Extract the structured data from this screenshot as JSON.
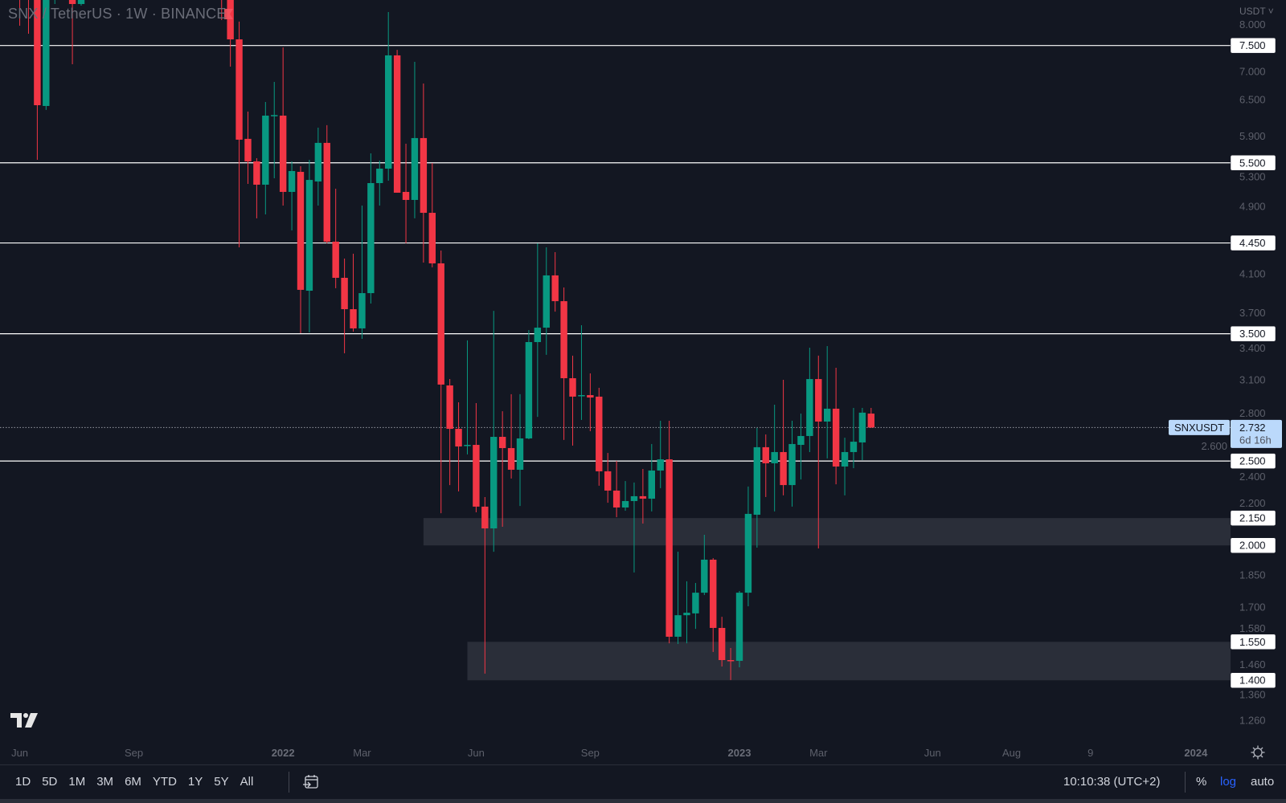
{
  "header": {
    "title": "SNX / TetherUS · 1W · BINANCE",
    "currency": "USDT ˅"
  },
  "colors": {
    "background": "#131722",
    "up": "#089981",
    "down": "#f23645",
    "zone": "#2a2e39",
    "level_line": "#ffffff",
    "axis_text": "#5d606b",
    "accent": "#2962ff",
    "last_price_bg": "#bbd9fb"
  },
  "chart_data": {
    "type": "candlestick",
    "symbol": "SNXUSDT",
    "interval": "1W",
    "y_scale": "log",
    "ylim": [
      1.2,
      8.46
    ],
    "grid": false,
    "candle_format": [
      "date",
      "open",
      "high",
      "low",
      "close",
      "direction_if_partly_offscreen"
    ],
    "candles": [
      [
        "2021-06-07",
        null,
        null,
        7.903,
        null,
        "d"
      ],
      [
        "2021-06-14",
        null,
        null,
        7.737,
        null,
        "d"
      ],
      [
        "2021-06-21",
        null,
        null,
        5.544,
        6.405,
        "d"
      ],
      [
        "2021-06-28",
        6.392,
        null,
        6.325,
        null,
        "u"
      ],
      [
        "2021-07-05",
        null,
        null,
        8.37,
        null,
        "u"
      ],
      [
        "2021-07-19",
        null,
        null,
        7.138,
        8.37,
        "d"
      ],
      [
        "2021-07-26",
        8.37,
        null,
        8.335,
        null,
        "u"
      ],
      [
        "2021-11-15",
        null,
        null,
        8.023,
        null,
        "d"
      ],
      [
        "2021-11-22",
        null,
        null,
        7.093,
        7.623,
        "d"
      ],
      [
        "2021-11-29",
        7.623,
        7.989,
        4.399,
        5.847
      ],
      [
        "2021-12-06",
        5.86,
        6.298,
        5.202,
        5.521
      ],
      [
        "2021-12-13",
        5.521,
        5.568,
        4.749,
        5.191
      ],
      [
        "2021-12-20",
        5.191,
        6.459,
        4.799,
        6.231
      ],
      [
        "2021-12-27",
        6.231,
        6.812,
        5.28,
        6.24
      ],
      [
        "2022-01-03",
        6.231,
        7.462,
        4.912,
        5.093
      ],
      [
        "2022-01-10",
        5.093,
        5.521,
        4.6,
        5.382
      ],
      [
        "2022-01-17",
        5.37,
        5.451,
        3.505,
        3.931
      ],
      [
        "2022-01-24",
        3.922,
        5.544,
        3.512,
        5.257
      ],
      [
        "2022-01-31",
        5.235,
        6.036,
        4.912,
        5.798
      ],
      [
        "2022-02-07",
        5.798,
        6.075,
        4.446,
        4.465
      ],
      [
        "2022-02-14",
        4.465,
        5.136,
        3.948,
        4.058
      ],
      [
        "2022-02-21",
        4.058,
        4.27,
        3.324,
        3.735
      ],
      [
        "2022-02-28",
        3.735,
        4.325,
        3.52,
        3.55
      ],
      [
        "2022-03-07",
        3.55,
        4.912,
        3.453,
        3.897
      ],
      [
        "2022-03-14",
        3.897,
        5.639,
        3.791,
        5.213
      ],
      [
        "2022-03-21",
        5.213,
        5.533,
        4.912,
        5.416
      ],
      [
        "2022-03-28",
        5.416,
        8.195,
        5.246,
        7.307
      ],
      [
        "2022-04-04",
        7.307,
        7.414,
        5.082,
        5.082
      ],
      [
        "2022-04-11",
        5.093,
        5.785,
        4.446,
        4.986
      ],
      [
        "2022-04-18",
        4.986,
        7.184,
        4.749,
        5.872
      ],
      [
        "2022-04-25",
        5.872,
        6.783,
        4.225,
        4.819
      ],
      [
        "2022-05-02",
        4.819,
        5.497,
        4.172,
        4.216
      ],
      [
        "2022-05-09",
        4.216,
        4.362,
        2.178,
        3.06
      ],
      [
        "2022-05-16",
        3.053,
        3.105,
        2.346,
        2.722
      ],
      [
        "2022-05-23",
        2.722,
        2.92,
        2.307,
        2.598
      ],
      [
        "2022-05-30",
        2.604,
        3.439,
        2.544,
        2.609
      ],
      [
        "2022-06-06",
        2.609,
        2.914,
        2.183,
        2.216
      ],
      [
        "2022-06-13",
        2.216,
        2.273,
        1.425,
        2.092
      ],
      [
        "2022-06-20",
        2.092,
        3.719,
        1.967,
        2.665
      ],
      [
        "2022-06-27",
        2.665,
        2.852,
        2.101,
        2.587
      ],
      [
        "2022-07-04",
        2.587,
        2.983,
        2.387,
        2.443
      ],
      [
        "2022-07-11",
        2.443,
        2.983,
        2.22,
        2.654
      ],
      [
        "2022-07-18",
        2.654,
        3.535,
        2.648,
        3.424
      ],
      [
        "2022-07-25",
        3.424,
        4.446,
        2.81,
        3.557
      ],
      [
        "2022-08-01",
        3.557,
        4.399,
        3.31,
        4.084
      ],
      [
        "2022-08-08",
        4.084,
        4.343,
        3.711,
        3.815
      ],
      [
        "2022-08-15",
        3.815,
        3.956,
        2.643,
        3.112
      ],
      [
        "2022-08-22",
        3.112,
        3.303,
        2.604,
        2.964
      ],
      [
        "2022-08-29",
        2.97,
        3.58,
        2.787,
        2.976
      ],
      [
        "2022-09-05",
        2.976,
        3.152,
        2.705,
        2.957
      ],
      [
        "2022-09-12",
        2.964,
        3.034,
        2.342,
        2.433
      ],
      [
        "2022-09-19",
        2.433,
        2.554,
        2.239,
        2.312
      ],
      [
        "2022-09-26",
        2.312,
        2.501,
        2.155,
        2.211
      ],
      [
        "2022-10-03",
        2.211,
        2.371,
        2.192,
        2.249
      ],
      [
        "2022-10-10",
        2.249,
        2.362,
        1.862,
        2.278
      ],
      [
        "2022-10-17",
        2.278,
        2.448,
        2.119,
        2.263
      ],
      [
        "2022-10-24",
        2.263,
        2.615,
        2.188,
        2.438
      ],
      [
        "2022-10-31",
        2.438,
        2.781,
        2.327,
        2.511
      ],
      [
        "2022-11-07",
        2.511,
        2.781,
        1.544,
        1.571
      ],
      [
        "2022-11-14",
        1.571,
        1.967,
        1.541,
        1.663
      ],
      [
        "2022-11-21",
        1.663,
        1.819,
        1.544,
        1.674
      ],
      [
        "2022-11-28",
        1.671,
        1.811,
        1.604,
        1.765
      ],
      [
        "2022-12-05",
        1.765,
        2.057,
        1.754,
        1.926
      ],
      [
        "2022-12-12",
        1.926,
        1.934,
        1.509,
        1.608
      ],
      [
        "2022-12-19",
        1.608,
        1.656,
        1.452,
        1.477
      ],
      [
        "2022-12-26",
        1.477,
        1.525,
        1.401,
        1.474
      ],
      [
        "2023-01-02",
        1.474,
        1.773,
        1.449,
        1.765
      ],
      [
        "2023-01-09",
        1.765,
        2.337,
        1.703,
        2.174
      ],
      [
        "2023-01-16",
        2.169,
        2.728,
        1.988,
        2.593
      ],
      [
        "2023-01-23",
        2.593,
        2.682,
        2.273,
        2.485
      ],
      [
        "2023-01-30",
        2.485,
        2.901,
        2.188,
        2.56
      ],
      [
        "2023-02-06",
        2.56,
        3.099,
        2.283,
        2.346
      ],
      [
        "2023-02-13",
        2.346,
        2.781,
        2.216,
        2.615
      ],
      [
        "2023-02-20",
        2.609,
        2.834,
        2.381,
        2.671
      ],
      [
        "2023-02-27",
        2.671,
        3.373,
        2.56,
        3.105
      ],
      [
        "2023-03-06",
        3.105,
        3.303,
        1.984,
        2.775
      ],
      [
        "2023-03-13",
        2.775,
        3.388,
        2.517,
        2.871
      ],
      [
        "2023-03-20",
        2.871,
        3.199,
        2.351,
        2.464
      ],
      [
        "2023-03-27",
        2.464,
        2.659,
        2.283,
        2.56
      ],
      [
        "2023-04-03",
        2.56,
        2.877,
        2.453,
        2.631
      ],
      [
        "2023-04-10",
        2.626,
        2.877,
        2.506,
        2.841
      ],
      [
        "2023-04-17",
        2.834,
        2.877,
        2.728,
        2.732
      ]
    ],
    "price_ticks": [
      "8.000",
      "7.000",
      "6.500",
      "5.900",
      "5.300",
      "4.900",
      "4.100",
      "3.700",
      "3.400",
      "3.100",
      "2.800",
      "2.600",
      "2.400",
      "2.200",
      "1.850",
      "1.700",
      "1.580",
      "1.460",
      "1.360",
      "1.260"
    ],
    "time_labels": [
      {
        "date": "2021-06-07",
        "label": "Jun",
        "bold": false
      },
      {
        "date": "2021-09-06",
        "label": "Sep",
        "bold": false
      },
      {
        "date": "2022-01-03",
        "label": "2022",
        "bold": true
      },
      {
        "date": "2022-03-07",
        "label": "Mar",
        "bold": false
      },
      {
        "date": "2022-06-06",
        "label": "Jun",
        "bold": false
      },
      {
        "date": "2022-09-05",
        "label": "Sep",
        "bold": false
      },
      {
        "date": "2023-01-02",
        "label": "2023",
        "bold": true
      },
      {
        "date": "2023-03-06",
        "label": "Mar",
        "bold": false
      },
      {
        "date": "2023-06-05",
        "label": "Jun",
        "bold": false
      },
      {
        "date": "2023-08-07",
        "label": "Aug",
        "bold": false
      },
      {
        "date": "2023-10-09",
        "label": "9",
        "bold": false
      },
      {
        "date": "2024-01-01",
        "label": "2024",
        "bold": true
      }
    ],
    "horizontal_levels": [
      {
        "price": 7.5,
        "label": "7.500"
      },
      {
        "price": 5.5,
        "label": "5.500"
      },
      {
        "price": 4.45,
        "label": "4.450"
      },
      {
        "price": 3.5,
        "label": "3.500"
      },
      {
        "price": 2.5,
        "label": "2.500"
      }
    ],
    "zones": [
      {
        "from_date": "2022-04-25",
        "low": 2.0,
        "high": 2.15,
        "low_label": "2.000",
        "high_label": "2.150"
      },
      {
        "from_date": "2022-05-30",
        "low": 1.4,
        "high": 1.55,
        "low_label": "1.400",
        "high_label": "1.550"
      }
    ],
    "last_price": {
      "symbol": "SNXUSDT",
      "value": 2.732,
      "label": "2.732",
      "countdown": "6d 16h"
    }
  },
  "toolbar": {
    "ranges": [
      "1D",
      "5D",
      "1M",
      "3M",
      "6M",
      "YTD",
      "1Y",
      "5Y",
      "All"
    ],
    "clock": "10:10:38 (UTC+2)",
    "percent": "%",
    "log": "log",
    "auto": "auto"
  }
}
